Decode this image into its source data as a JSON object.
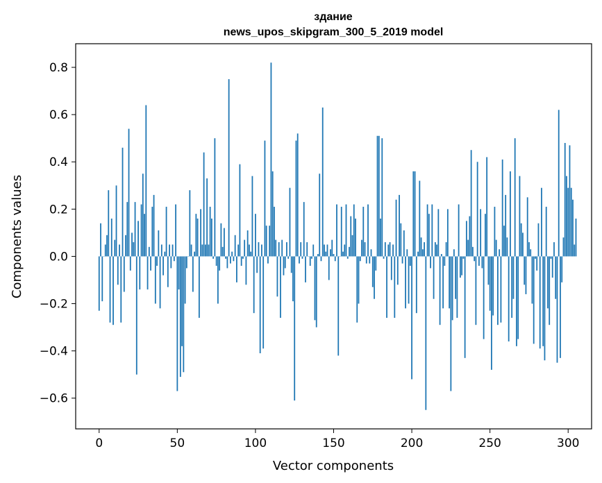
{
  "chart_data": {
    "type": "bar",
    "title": "здание",
    "subtitle": "news_upos_skipgram_300_5_2019 model",
    "xlabel": "Vector components",
    "ylabel": "Components values",
    "xlim": [
      -15,
      315
    ],
    "ylim": [
      -0.73,
      0.9
    ],
    "xticks": [
      0,
      50,
      100,
      150,
      200,
      250,
      300
    ],
    "xtick_labels": [
      "0",
      "50",
      "100",
      "150",
      "200",
      "250",
      "300"
    ],
    "yticks": [
      -0.6,
      -0.4,
      -0.2,
      0.0,
      0.2,
      0.4,
      0.6,
      0.8
    ],
    "ytick_labels": [
      "−0.6",
      "−0.4",
      "−0.2",
      "0.0",
      "0.2",
      "0.4",
      "0.6",
      "0.8"
    ],
    "grid": false,
    "bar_color": "#1f77b4",
    "x_start": 0,
    "values": [
      -0.23,
      0.14,
      -0.19,
      0.0,
      0.05,
      0.09,
      0.28,
      -0.28,
      0.16,
      -0.29,
      0.07,
      0.3,
      -0.12,
      0.05,
      -0.28,
      0.46,
      -0.15,
      0.09,
      0.23,
      0.54,
      -0.06,
      0.1,
      0.06,
      0.23,
      -0.5,
      0.15,
      -0.14,
      0.22,
      0.35,
      0.18,
      0.64,
      -0.14,
      0.04,
      -0.06,
      0.21,
      0.26,
      -0.2,
      -0.04,
      0.11,
      -0.22,
      0.05,
      -0.08,
      0.02,
      0.21,
      -0.13,
      0.05,
      -0.05,
      0.05,
      -0.02,
      0.22,
      -0.57,
      -0.14,
      -0.51,
      -0.38,
      -0.49,
      -0.2,
      -0.05,
      0.0,
      0.28,
      0.05,
      -0.15,
      0.02,
      0.18,
      0.16,
      -0.26,
      0.2,
      0.05,
      0.44,
      0.05,
      0.33,
      0.05,
      0.21,
      0.16,
      -0.01,
      0.5,
      -0.04,
      -0.2,
      -0.06,
      0.14,
      0.04,
      0.12,
      -0.01,
      -0.05,
      0.75,
      -0.03,
      0.02,
      -0.02,
      0.09,
      -0.11,
      0.05,
      0.39,
      -0.04,
      -0.01,
      0.07,
      -0.12,
      0.11,
      0.05,
      0.02,
      0.34,
      -0.24,
      0.18,
      -0.07,
      0.06,
      -0.41,
      0.05,
      -0.39,
      0.49,
      0.13,
      -0.03,
      0.13,
      0.82,
      0.36,
      0.21,
      0.07,
      -0.17,
      0.06,
      -0.26,
      0.07,
      -0.08,
      -0.05,
      0.06,
      -0.01,
      0.29,
      -0.07,
      -0.19,
      -0.61,
      0.49,
      0.52,
      -0.03,
      0.06,
      -0.01,
      0.23,
      -0.11,
      0.06,
      0.0,
      -0.04,
      -0.01,
      0.05,
      -0.27,
      -0.3,
      0.01,
      0.35,
      -0.02,
      0.63,
      0.05,
      0.02,
      0.05,
      -0.1,
      0.03,
      0.07,
      0.01,
      -0.02,
      0.22,
      -0.42,
      0.0,
      0.21,
      0.02,
      0.05,
      0.22,
      -0.01,
      0.04,
      0.17,
      0.09,
      0.22,
      0.16,
      -0.28,
      -0.2,
      -0.02,
      0.07,
      0.21,
      0.06,
      -0.03,
      0.22,
      -0.03,
      0.03,
      -0.13,
      -0.18,
      -0.06,
      0.51,
      0.51,
      0.16,
      0.5,
      -0.01,
      0.06,
      -0.26,
      0.05,
      0.06,
      -0.1,
      0.05,
      -0.26,
      0.24,
      -0.12,
      0.26,
      0.14,
      -0.03,
      0.11,
      -0.22,
      0.03,
      -0.2,
      -0.04,
      -0.52,
      0.36,
      0.36,
      -0.24,
      0.02,
      0.32,
      0.08,
      0.03,
      0.06,
      -0.65,
      0.22,
      0.18,
      -0.05,
      0.22,
      -0.18,
      0.06,
      0.05,
      0.2,
      -0.29,
      0.01,
      -0.22,
      -0.04,
      0.06,
      0.2,
      -0.22,
      -0.57,
      -0.27,
      0.03,
      -0.18,
      -0.26,
      0.22,
      -0.09,
      -0.08,
      -0.01,
      -0.43,
      0.15,
      0.07,
      0.17,
      0.45,
      0.04,
      -0.02,
      -0.29,
      0.4,
      -0.04,
      0.2,
      -0.05,
      -0.35,
      0.18,
      0.42,
      -0.12,
      -0.23,
      -0.48,
      -0.25,
      0.21,
      0.07,
      -0.29,
      0.03,
      -0.28,
      0.41,
      0.13,
      0.26,
      0.08,
      -0.36,
      0.36,
      -0.26,
      -0.18,
      0.5,
      -0.38,
      -0.35,
      0.34,
      0.14,
      0.1,
      -0.12,
      -0.16,
      0.25,
      0.06,
      0.03,
      -0.2,
      -0.37,
      -0.01,
      -0.06,
      0.14,
      -0.39,
      0.29,
      -0.38,
      -0.44,
      0.21,
      -0.22,
      -0.29,
      -0.01,
      -0.09,
      0.06,
      -0.18,
      -0.45,
      0.62,
      -0.43,
      -0.11,
      0.08,
      0.48,
      0.34,
      0.29,
      0.47,
      0.29,
      0.24,
      0.05,
      0.16
    ]
  }
}
